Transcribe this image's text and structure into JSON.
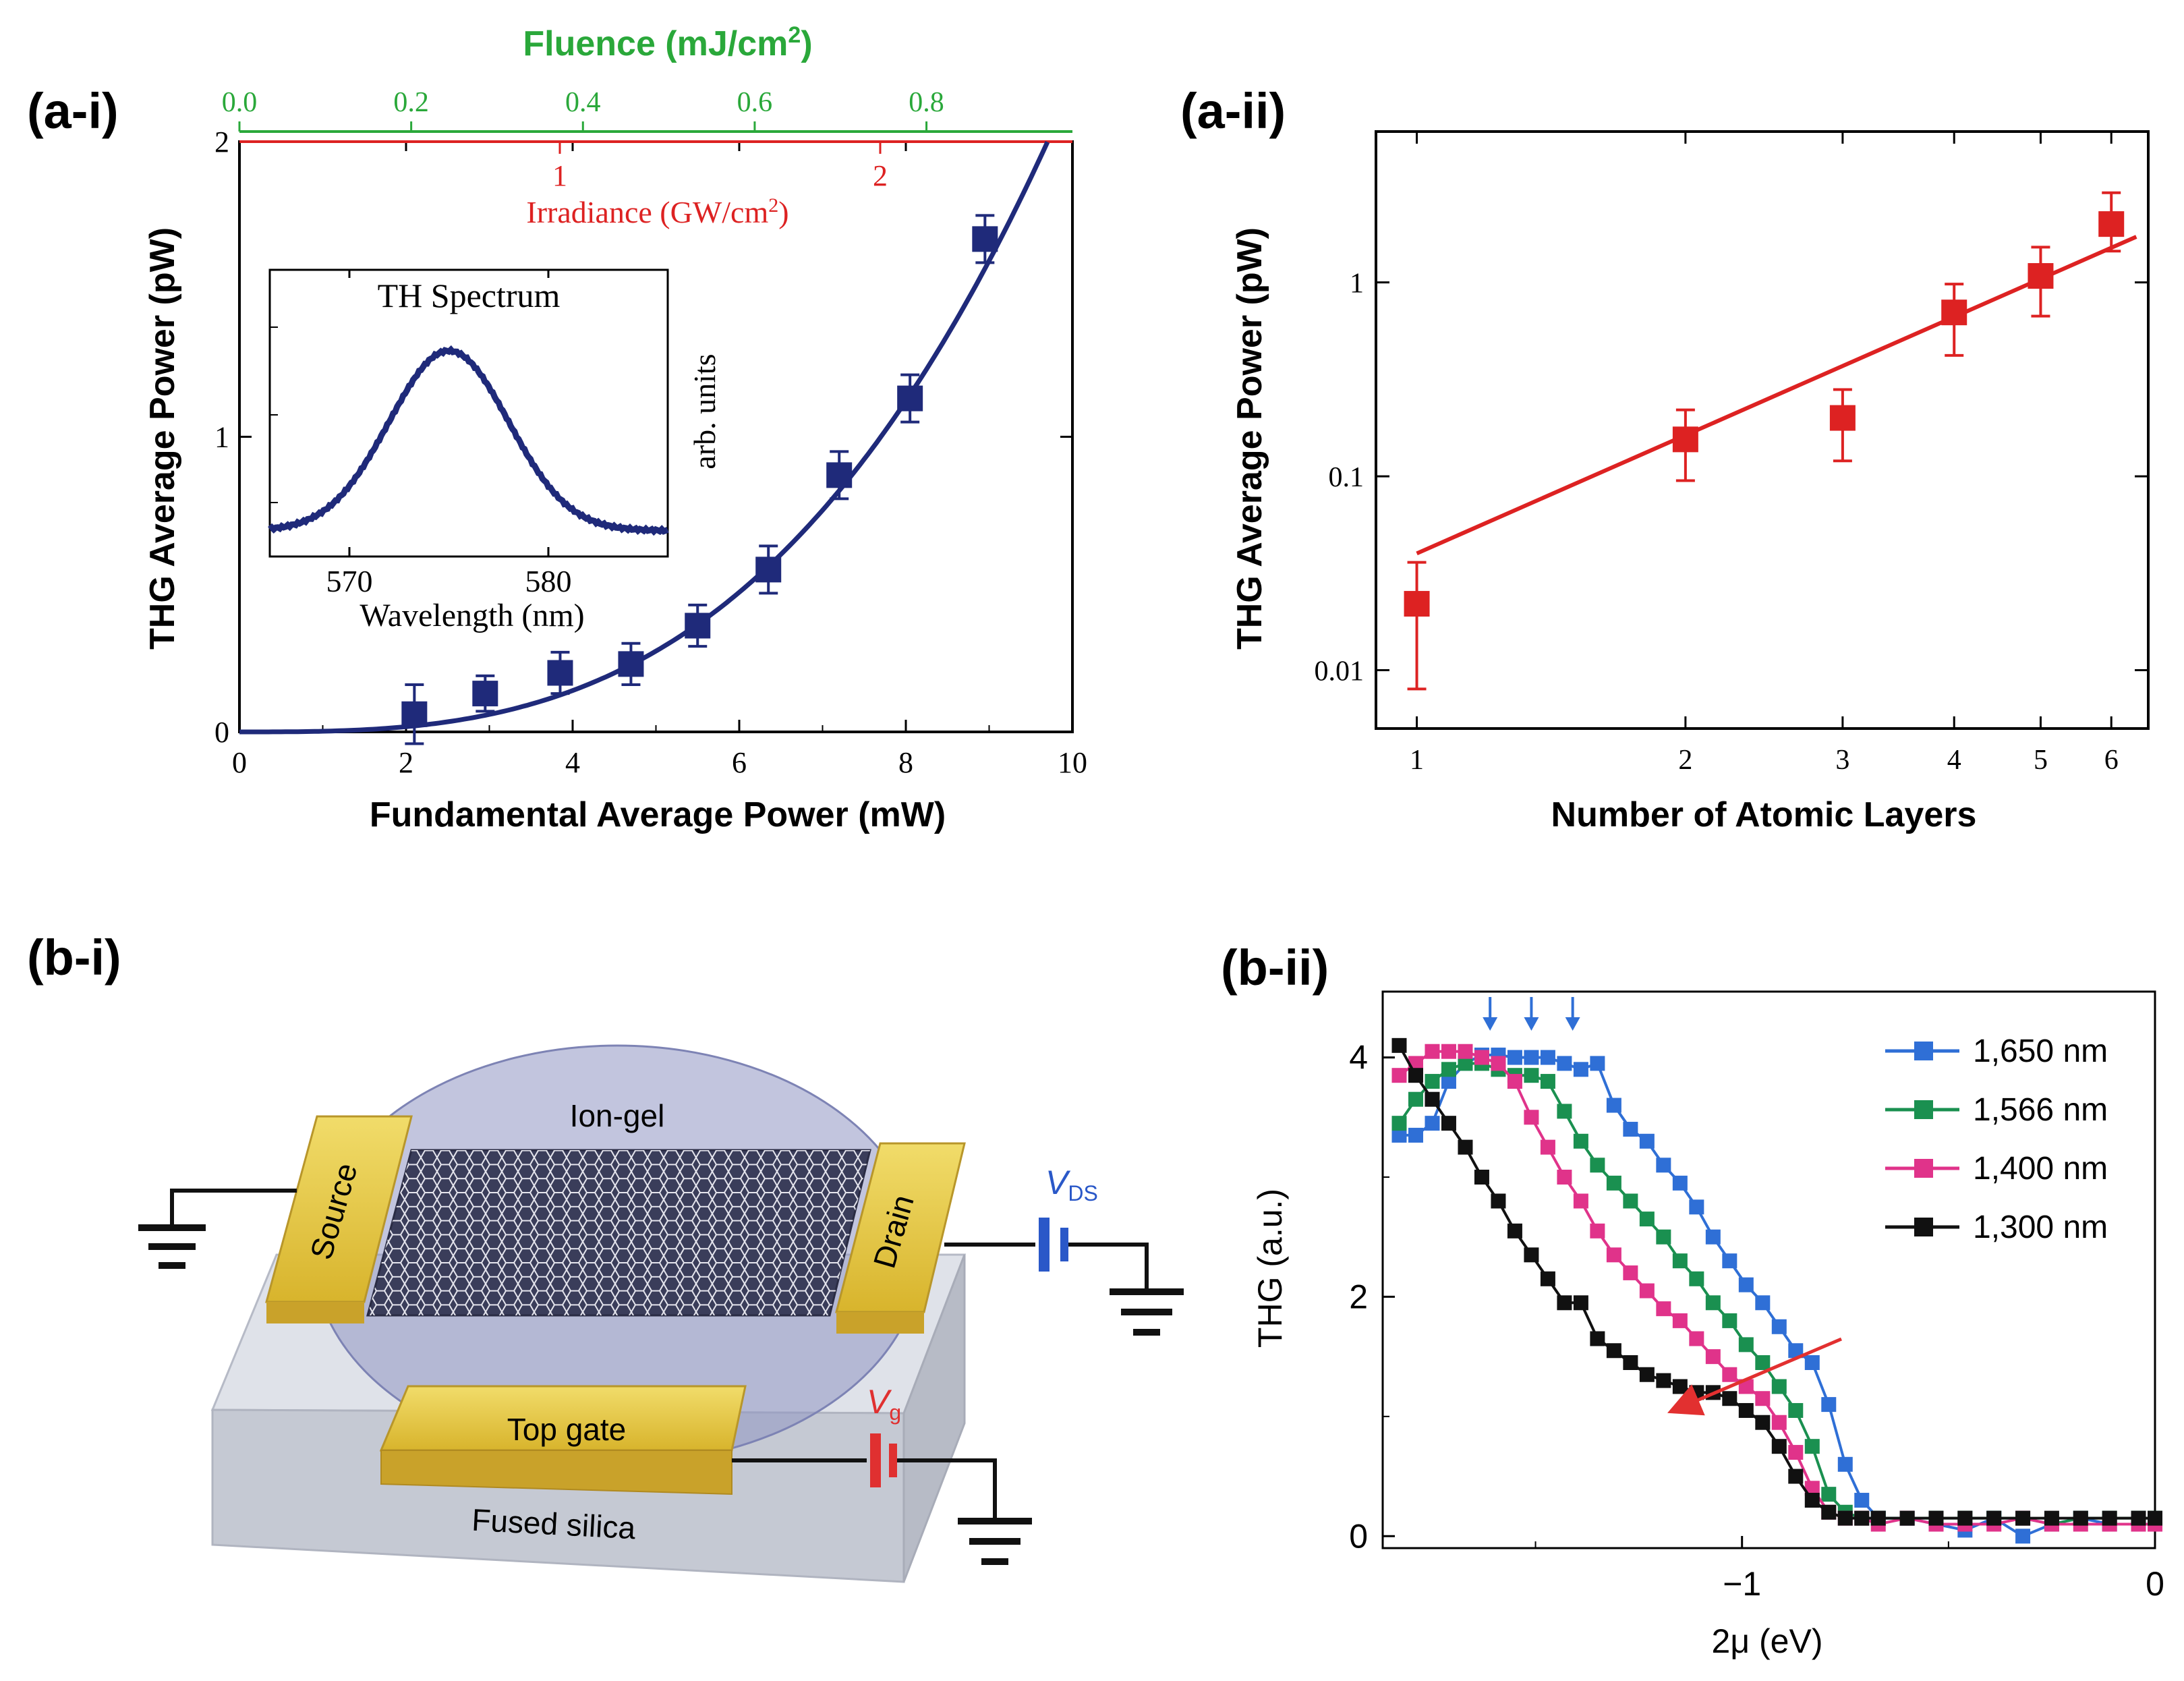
{
  "panels": {
    "a_i": "(a-i)",
    "a_ii": "(a-ii)",
    "b_i": "(b-i)",
    "b_ii": "(b-ii)"
  },
  "colors": {
    "navy": "#1f2a7a",
    "red": "#dd2222",
    "green": "#2aa83a",
    "blue": "#2f6fd6",
    "teal": "#1a9050",
    "magenta": "#e0338a",
    "black": "#111111",
    "gold": "#e2c030",
    "gel": "#9aa0c8",
    "silica": "#c8ccd6"
  },
  "chart_data": [
    {
      "id": "a-i",
      "type": "scatter",
      "xlabel": "Fundamental Average Power (mW)",
      "ylabel": "THG Average Power (pW)",
      "xlim": [
        0,
        10
      ],
      "ylim": [
        0,
        2
      ],
      "x_ticks": [
        "0",
        "2",
        "4",
        "6",
        "8",
        "10"
      ],
      "y_ticks": [
        "0",
        "1",
        "2"
      ],
      "top_axis_green": {
        "label": "Fluence (mJ/cm²)",
        "ticks": [
          "0.0",
          "0.2",
          "0.4",
          "0.6",
          "0.8"
        ],
        "max": 0.97
      },
      "top_axis_red": {
        "label": "Irradiance (GW/cm²)",
        "ticks": [
          "1",
          "2"
        ],
        "max": 2.6
      },
      "series": [
        {
          "x": [
            2.1,
            2.95,
            3.85,
            4.7,
            5.5,
            6.35,
            7.2,
            8.05,
            8.95
          ],
          "y": [
            0.06,
            0.13,
            0.2,
            0.23,
            0.36,
            0.55,
            0.87,
            1.13,
            1.67
          ],
          "err": [
            0.1,
            0.06,
            0.07,
            0.07,
            0.07,
            0.08,
            0.08,
            0.08,
            0.08
          ]
        }
      ],
      "fit": {
        "kind": "cubic",
        "coef": 0.00219
      },
      "inset": {
        "title": "TH Spectrum",
        "xlabel": "Wavelength (nm)",
        "ylabel": "arb. units",
        "x_ticks": [
          "570",
          "580"
        ],
        "xlim": [
          566,
          586
        ],
        "peak": 575
      }
    },
    {
      "id": "a-ii",
      "type": "scatter",
      "xlabel": "Number of Atomic Layers",
      "ylabel": "THG Average Power (pW)",
      "xscale": "log",
      "yscale": "log",
      "xlim": [
        0.9,
        6.6
      ],
      "ylim": [
        0.005,
        6
      ],
      "x_ticks": [
        "1",
        "2",
        "3",
        "4",
        "5",
        "6"
      ],
      "y_ticks": [
        "0.01",
        "0.1",
        "1"
      ],
      "series": [
        {
          "x": [
            1,
            2,
            3,
            4,
            5,
            6
          ],
          "y": [
            0.022,
            0.155,
            0.2,
            0.7,
            1.08,
            2.0
          ],
          "lo": [
            0.008,
            0.095,
            0.12,
            0.42,
            0.67,
            1.45
          ],
          "hi": [
            0.036,
            0.22,
            0.28,
            0.98,
            1.52,
            2.9
          ]
        }
      ],
      "fit": {
        "x": [
          1,
          6.4
        ],
        "y": [
          0.04,
          1.72
        ]
      }
    },
    {
      "id": "b-ii",
      "type": "line",
      "xlabel": "2μ (eV)",
      "ylabel": "THG (a.u.)",
      "xlim": [
        -1.87,
        0
      ],
      "ylim": [
        -0.1,
        4.55
      ],
      "x_ticks": [
        "−1",
        "0"
      ],
      "y_ticks": [
        "0",
        "2",
        "4"
      ],
      "series": [
        {
          "name": "1,650 nm",
          "x": [
            -1.83,
            -1.79,
            -1.75,
            -1.71,
            -1.67,
            -1.63,
            -1.59,
            -1.55,
            -1.51,
            -1.47,
            -1.43,
            -1.39,
            -1.35,
            -1.31,
            -1.27,
            -1.23,
            -1.19,
            -1.15,
            -1.11,
            -1.07,
            -1.03,
            -0.99,
            -0.95,
            -0.91,
            -0.87,
            -0.83,
            -0.79,
            -0.75,
            -0.71,
            -0.67,
            -0.6,
            -0.53,
            -0.46,
            -0.39,
            -0.32,
            -0.25,
            -0.18,
            -0.11,
            -0.04,
            0
          ],
          "y": [
            3.35,
            3.35,
            3.45,
            3.8,
            3.95,
            4.02,
            4.02,
            4.0,
            4.0,
            4.0,
            3.95,
            3.9,
            3.95,
            3.6,
            3.4,
            3.3,
            3.1,
            2.95,
            2.75,
            2.5,
            2.3,
            2.1,
            1.95,
            1.75,
            1.55,
            1.45,
            1.1,
            0.6,
            0.3,
            0.15,
            0.15,
            0.1,
            0.05,
            0.15,
            0.0,
            0.1,
            0.15,
            0.1,
            0.1,
            0.1
          ]
        },
        {
          "name": "1,566 nm",
          "x": [
            -1.83,
            -1.79,
            -1.75,
            -1.71,
            -1.67,
            -1.63,
            -1.59,
            -1.55,
            -1.51,
            -1.47,
            -1.43,
            -1.39,
            -1.35,
            -1.31,
            -1.27,
            -1.23,
            -1.19,
            -1.15,
            -1.11,
            -1.07,
            -1.03,
            -0.99,
            -0.95,
            -0.91,
            -0.87,
            -0.83,
            -0.79,
            -0.75,
            -0.71,
            -0.67,
            -0.6,
            -0.53,
            -0.46,
            -0.39,
            -0.32,
            -0.25,
            -0.18,
            -0.11,
            -0.04,
            0
          ],
          "y": [
            3.45,
            3.65,
            3.8,
            3.9,
            3.95,
            3.95,
            3.9,
            3.85,
            3.85,
            3.8,
            3.55,
            3.3,
            3.1,
            2.95,
            2.8,
            2.65,
            2.5,
            2.3,
            2.15,
            1.95,
            1.8,
            1.6,
            1.45,
            1.25,
            1.05,
            0.75,
            0.35,
            0.2,
            0.15,
            0.15,
            0.15,
            0.15,
            0.15,
            0.15,
            0.15,
            0.1,
            0.15,
            0.15,
            0.15,
            0.15
          ]
        },
        {
          "name": "1,400 nm",
          "x": [
            -1.83,
            -1.79,
            -1.75,
            -1.71,
            -1.67,
            -1.63,
            -1.59,
            -1.55,
            -1.51,
            -1.47,
            -1.43,
            -1.39,
            -1.35,
            -1.31,
            -1.27,
            -1.23,
            -1.19,
            -1.15,
            -1.11,
            -1.07,
            -1.03,
            -0.99,
            -0.95,
            -0.91,
            -0.87,
            -0.83,
            -0.79,
            -0.75,
            -0.71,
            -0.67,
            -0.6,
            -0.53,
            -0.46,
            -0.39,
            -0.32,
            -0.25,
            -0.18,
            -0.11,
            -0.04,
            0
          ],
          "y": [
            3.85,
            3.95,
            4.05,
            4.05,
            4.05,
            4.0,
            3.95,
            3.8,
            3.5,
            3.25,
            3.0,
            2.8,
            2.55,
            2.35,
            2.2,
            2.05,
            1.9,
            1.8,
            1.65,
            1.5,
            1.35,
            1.25,
            1.15,
            0.95,
            0.7,
            0.4,
            0.2,
            0.15,
            0.15,
            0.1,
            0.15,
            0.1,
            0.1,
            0.1,
            0.15,
            0.1,
            0.1,
            0.1,
            0.1,
            0.1
          ]
        },
        {
          "name": "1,300 nm",
          "x": [
            -1.83,
            -1.79,
            -1.75,
            -1.71,
            -1.67,
            -1.63,
            -1.59,
            -1.55,
            -1.51,
            -1.47,
            -1.43,
            -1.39,
            -1.35,
            -1.31,
            -1.27,
            -1.23,
            -1.19,
            -1.15,
            -1.11,
            -1.07,
            -1.03,
            -0.99,
            -0.95,
            -0.91,
            -0.87,
            -0.83,
            -0.79,
            -0.75,
            -0.71,
            -0.67,
            -0.6,
            -0.53,
            -0.46,
            -0.39,
            -0.32,
            -0.25,
            -0.18,
            -0.11,
            -0.04,
            0
          ],
          "y": [
            4.1,
            3.85,
            3.65,
            3.45,
            3.25,
            3.0,
            2.8,
            2.55,
            2.35,
            2.15,
            1.95,
            1.95,
            1.65,
            1.55,
            1.45,
            1.35,
            1.3,
            1.25,
            1.2,
            1.2,
            1.15,
            1.05,
            0.95,
            0.75,
            0.5,
            0.3,
            0.2,
            0.15,
            0.15,
            0.15,
            0.15,
            0.15,
            0.15,
            0.15,
            0.15,
            0.15,
            0.15,
            0.15,
            0.15,
            0.15
          ]
        }
      ],
      "arrows_at_x": [
        -1.61,
        -1.51,
        -1.41
      ]
    }
  ],
  "device": {
    "ion_gel": "Ion-gel",
    "source": "Source",
    "drain": "Drain",
    "top_gate": "Top gate",
    "substrate": "Fused silica",
    "vds_main": "V",
    "vds_sub": "DS",
    "vg_main": "V",
    "vg_sub": "g"
  }
}
